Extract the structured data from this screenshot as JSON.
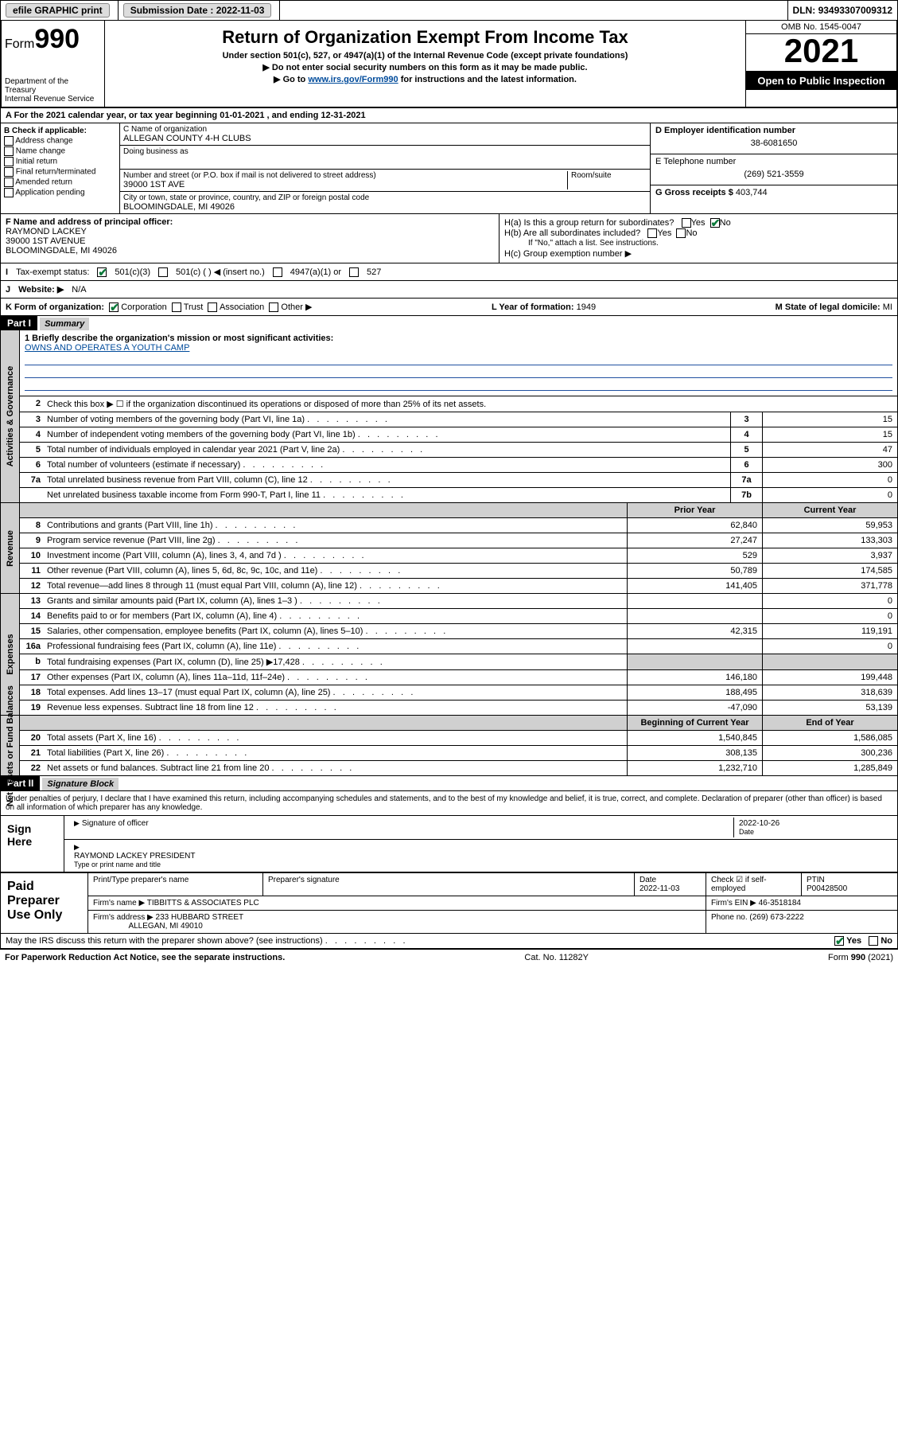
{
  "topbar": {
    "efile": "efile GRAPHIC print",
    "submission_label": "Submission Date :",
    "submission_date": "2022-11-03",
    "dln_label": "DLN:",
    "dln": "93493307009312"
  },
  "header": {
    "form_label": "Form",
    "form_number": "990",
    "dept": "Department of the Treasury",
    "irs": "Internal Revenue Service",
    "title": "Return of Organization Exempt From Income Tax",
    "sub1": "Under section 501(c), 527, or 4947(a)(1) of the Internal Revenue Code (except private foundations)",
    "sub2": "▶ Do not enter social security numbers on this form as it may be made public.",
    "sub3_pre": "▶ Go to ",
    "sub3_link": "www.irs.gov/Form990",
    "sub3_post": " for instructions and the latest information.",
    "omb": "OMB No. 1545-0047",
    "year": "2021",
    "inspect": "Open to Public Inspection"
  },
  "period": {
    "label_a": "A For the 2021 calendar year, or tax year beginning ",
    "start": "01-01-2021",
    "mid": " , and ending ",
    "end": "12-31-2021"
  },
  "sectionB": {
    "title": "B Check if applicable:",
    "items": [
      "Address change",
      "Name change",
      "Initial return",
      "Final return/terminated",
      "Amended return",
      "Application pending"
    ]
  },
  "sectionC": {
    "name_label": "C Name of organization",
    "name": "ALLEGAN COUNTY 4-H CLUBS",
    "dba_label": "Doing business as",
    "dba": "",
    "addr_label": "Number and street (or P.O. box if mail is not delivered to street address)",
    "room_label": "Room/suite",
    "addr": "39000 1ST AVE",
    "city_label": "City or town, state or province, country, and ZIP or foreign postal code",
    "city": "BLOOMINGDALE, MI  49026"
  },
  "sectionD": {
    "label": "D Employer identification number",
    "value": "38-6081650"
  },
  "sectionE": {
    "label": "E Telephone number",
    "value": "(269) 521-3559"
  },
  "sectionG": {
    "label": "G Gross receipts $",
    "value": "403,744"
  },
  "sectionF": {
    "label": "F Name and address of principal officer:",
    "name": "RAYMOND LACKEY",
    "addr1": "39000 1ST AVENUE",
    "addr2": "BLOOMINGDALE, MI  49026"
  },
  "sectionH": {
    "ha": "H(a)  Is this a group return for subordinates?",
    "ha_yes": "Yes",
    "ha_no": "No",
    "hb": "H(b)  Are all subordinates included?",
    "hb_note": "If \"No,\" attach a list. See instructions.",
    "hc": "H(c)  Group exemption number ▶"
  },
  "rowI": {
    "label": "Tax-exempt status:",
    "opt1": "501(c)(3)",
    "opt2": "501(c) (  ) ◀ (insert no.)",
    "opt3": "4947(a)(1) or",
    "opt4": "527"
  },
  "rowJ": {
    "label": "Website: ▶",
    "value": "N/A"
  },
  "rowK": {
    "label": "K Form of organization:",
    "opts": [
      "Corporation",
      "Trust",
      "Association",
      "Other ▶"
    ],
    "L_label": "L Year of formation:",
    "L_val": "1949",
    "M_label": "M State of legal domicile:",
    "M_val": "MI"
  },
  "partI": {
    "hdr": "Part I",
    "title": "Summary",
    "q1_label": "1  Briefly describe the organization's mission or most significant activities:",
    "q1_text": "OWNS AND OPERATES A YOUTH CAMP",
    "q2": "Check this box ▶ ☐  if the organization discontinued its operations or disposed of more than 25% of its net assets.",
    "lines_gov": [
      {
        "n": "3",
        "t": "Number of voting members of the governing body (Part VI, line 1a)",
        "box": "3",
        "v": "15"
      },
      {
        "n": "4",
        "t": "Number of independent voting members of the governing body (Part VI, line 1b)",
        "box": "4",
        "v": "15"
      },
      {
        "n": "5",
        "t": "Total number of individuals employed in calendar year 2021 (Part V, line 2a)",
        "box": "5",
        "v": "47"
      },
      {
        "n": "6",
        "t": "Total number of volunteers (estimate if necessary)",
        "box": "6",
        "v": "300"
      },
      {
        "n": "7a",
        "t": "Total unrelated business revenue from Part VIII, column (C), line 12",
        "box": "7a",
        "v": "0"
      },
      {
        "n": "",
        "t": "Net unrelated business taxable income from Form 990-T, Part I, line 11",
        "box": "7b",
        "v": "0"
      }
    ],
    "prior_label": "Prior Year",
    "current_label": "Current Year",
    "revenue": [
      {
        "n": "8",
        "t": "Contributions and grants (Part VIII, line 1h)",
        "p": "62,840",
        "c": "59,953"
      },
      {
        "n": "9",
        "t": "Program service revenue (Part VIII, line 2g)",
        "p": "27,247",
        "c": "133,303"
      },
      {
        "n": "10",
        "t": "Investment income (Part VIII, column (A), lines 3, 4, and 7d )",
        "p": "529",
        "c": "3,937"
      },
      {
        "n": "11",
        "t": "Other revenue (Part VIII, column (A), lines 5, 6d, 8c, 9c, 10c, and 11e)",
        "p": "50,789",
        "c": "174,585"
      },
      {
        "n": "12",
        "t": "Total revenue—add lines 8 through 11 (must equal Part VIII, column (A), line 12)",
        "p": "141,405",
        "c": "371,778"
      }
    ],
    "expenses": [
      {
        "n": "13",
        "t": "Grants and similar amounts paid (Part IX, column (A), lines 1–3 )",
        "p": "",
        "c": "0"
      },
      {
        "n": "14",
        "t": "Benefits paid to or for members (Part IX, column (A), line 4)",
        "p": "",
        "c": "0"
      },
      {
        "n": "15",
        "t": "Salaries, other compensation, employee benefits (Part IX, column (A), lines 5–10)",
        "p": "42,315",
        "c": "119,191"
      },
      {
        "n": "16a",
        "t": "Professional fundraising fees (Part IX, column (A), line 11e)",
        "p": "",
        "c": "0"
      },
      {
        "n": "b",
        "t": "Total fundraising expenses (Part IX, column (D), line 25) ▶17,428",
        "p": "—gray—",
        "c": "—gray—"
      },
      {
        "n": "17",
        "t": "Other expenses (Part IX, column (A), lines 11a–11d, 11f–24e)",
        "p": "146,180",
        "c": "199,448"
      },
      {
        "n": "18",
        "t": "Total expenses. Add lines 13–17 (must equal Part IX, column (A), line 25)",
        "p": "188,495",
        "c": "318,639"
      },
      {
        "n": "19",
        "t": "Revenue less expenses. Subtract line 18 from line 12",
        "p": "-47,090",
        "c": "53,139"
      }
    ],
    "net_hdr_begin": "Beginning of Current Year",
    "net_hdr_end": "End of Year",
    "net": [
      {
        "n": "20",
        "t": "Total assets (Part X, line 16)",
        "p": "1,540,845",
        "c": "1,586,085"
      },
      {
        "n": "21",
        "t": "Total liabilities (Part X, line 26)",
        "p": "308,135",
        "c": "300,236"
      },
      {
        "n": "22",
        "t": "Net assets or fund balances. Subtract line 21 from line 20",
        "p": "1,232,710",
        "c": "1,285,849"
      }
    ],
    "side_gov": "Activities & Governance",
    "side_rev": "Revenue",
    "side_exp": "Expenses",
    "side_net": "Net Assets or Fund Balances"
  },
  "partII": {
    "hdr": "Part II",
    "title": "Signature Block",
    "penalty": "Under penalties of perjury, I declare that I have examined this return, including accompanying schedules and statements, and to the best of my knowledge and belief, it is true, correct, and complete. Declaration of preparer (other than officer) is based on all information of which preparer has any knowledge.",
    "sign_here": "Sign Here",
    "sig_officer": "Signature of officer",
    "sig_date": "2022-10-26",
    "date_label": "Date",
    "officer_name": "RAYMOND LACKEY  PRESIDENT",
    "type_label": "Type or print name and title",
    "paid": "Paid Preparer Use Only",
    "p_name_label": "Print/Type preparer's name",
    "p_sig_label": "Preparer's signature",
    "p_date_label": "Date",
    "p_date": "2022-11-03",
    "p_check_label": "Check ☑ if self-employed",
    "ptin_label": "PTIN",
    "ptin": "P00428500",
    "firm_name_label": "Firm's name ▶",
    "firm_name": "TIBBITTS & ASSOCIATES PLC",
    "firm_ein_label": "Firm's EIN ▶",
    "firm_ein": "46-3518184",
    "firm_addr_label": "Firm's address ▶",
    "firm_addr1": "233 HUBBARD STREET",
    "firm_addr2": "ALLEGAN, MI  49010",
    "firm_phone_label": "Phone no.",
    "firm_phone": "(269) 673-2222",
    "may_irs": "May the IRS discuss this return with the preparer shown above? (see instructions)",
    "yes": "Yes",
    "no": "No"
  },
  "footer": {
    "left": "For Paperwork Reduction Act Notice, see the separate instructions.",
    "mid": "Cat. No. 11282Y",
    "right": "Form 990 (2021)"
  }
}
